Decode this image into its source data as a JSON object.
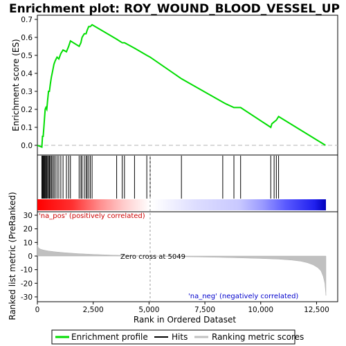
{
  "chart_data": [
    {
      "panel": "enrichment",
      "type": "line",
      "title": "Enrichment plot: ROY_WOUND_BLOOD_VESSEL_UP",
      "ylabel": "Enrichment score (ES)",
      "xlim": [
        0,
        13000
      ],
      "ylim": [
        -0.05,
        0.7
      ],
      "yticks": [
        "0.0",
        "0.1",
        "0.2",
        "0.3",
        "0.4",
        "0.5",
        "0.6",
        "0.7"
      ],
      "ytick_values": [
        0.0,
        0.1,
        0.2,
        0.3,
        0.4,
        0.5,
        0.6,
        0.7
      ],
      "grid": false,
      "line_color": "#00dd00",
      "series": [
        {
          "name": "Enrichment profile",
          "x": [
            0,
            200,
            230,
            260,
            290,
            320,
            350,
            380,
            420,
            460,
            500,
            540,
            580,
            630,
            680,
            740,
            800,
            880,
            960,
            1050,
            1150,
            1300,
            1400,
            1480,
            1870,
            1950,
            2000,
            2100,
            2180,
            2230,
            2300,
            2370,
            2450,
            3550,
            3800,
            3900,
            4350,
            4900,
            5050,
            6450,
            8300,
            8450,
            8800,
            8900,
            9100,
            10450,
            10500,
            10600,
            10700,
            10800,
            12900
          ],
          "y": [
            0.0,
            -0.01,
            0.05,
            0.05,
            0.1,
            0.15,
            0.2,
            0.21,
            0.2,
            0.25,
            0.3,
            0.3,
            0.34,
            0.38,
            0.41,
            0.45,
            0.47,
            0.49,
            0.48,
            0.51,
            0.53,
            0.52,
            0.55,
            0.58,
            0.55,
            0.57,
            0.6,
            0.62,
            0.62,
            0.64,
            0.66,
            0.66,
            0.67,
            0.59,
            0.57,
            0.57,
            0.54,
            0.5,
            0.49,
            0.37,
            0.24,
            0.23,
            0.21,
            0.21,
            0.21,
            0.1,
            0.12,
            0.13,
            0.14,
            0.16,
            0.0
          ]
        }
      ]
    },
    {
      "panel": "hits",
      "type": "scatter",
      "series": [
        {
          "name": "Hits",
          "x": [
            200,
            230,
            260,
            290,
            320,
            350,
            380,
            420,
            460,
            500,
            540,
            580,
            630,
            680,
            740,
            800,
            880,
            960,
            1050,
            1150,
            1300,
            1400,
            1480,
            1870,
            1950,
            2000,
            2100,
            2180,
            2230,
            2300,
            2370,
            2450,
            3550,
            3800,
            3900,
            4350,
            4900,
            5050,
            6450,
            8300,
            8800,
            9100,
            10450,
            10600,
            10700,
            10800
          ]
        }
      ]
    },
    {
      "panel": "ranked_metric",
      "type": "area",
      "ylabel": "Ranked list metric (PreRanked)",
      "xlabel": "Rank in Ordered Dataset",
      "xlim": [
        0,
        13000
      ],
      "ylim": [
        -32,
        33
      ],
      "xticks": [
        "0",
        "2,500",
        "5,000",
        "7,500",
        "10,000",
        "12,500"
      ],
      "xtick_values": [
        0,
        2500,
        5000,
        7500,
        10000,
        12500
      ],
      "yticks": [
        "30",
        "20",
        "10",
        "0",
        "-10",
        "-20",
        "-30"
      ],
      "ytick_values": [
        30,
        20,
        10,
        0,
        -10,
        -20,
        -30
      ],
      "zero_cross": 5049,
      "series": [
        {
          "name": "Ranking metric scores",
          "x": [
            0,
            50,
            150,
            300,
            500,
            800,
            1200,
            1800,
            2500,
            3300,
            4200,
            5049,
            6000,
            7000,
            8000,
            9000,
            10000,
            10800,
            11400,
            11800,
            12100,
            12350,
            12550,
            12700,
            12800,
            12870,
            12920
          ],
          "y": [
            8,
            6,
            5,
            4.3,
            3.7,
            3.1,
            2.5,
            1.8,
            1.2,
            0.7,
            0.3,
            0,
            -0.3,
            -0.6,
            -0.9,
            -1.3,
            -1.8,
            -2.3,
            -3,
            -3.8,
            -5,
            -6.5,
            -8.5,
            -11,
            -15,
            -20,
            -29
          ]
        }
      ]
    }
  ],
  "annotations": {
    "pos_label": "'na_pos' (positively correlated)",
    "neg_label": "'na_neg' (negatively correlated)",
    "zero_cross_label": "Zero cross at 5049",
    "pos_color": "#cc0000",
    "neg_color": "#0000cc"
  },
  "legend": {
    "placement": "bottom",
    "items": [
      "Enrichment profile",
      "Hits",
      "Ranking metric scores"
    ]
  },
  "colors": {
    "enrichment_line": "#00dd00",
    "hit_line": "#000000",
    "metric_fill": "#c0c0c0",
    "gradient_red": "#ff0000",
    "gradient_blue": "#0000ff"
  }
}
